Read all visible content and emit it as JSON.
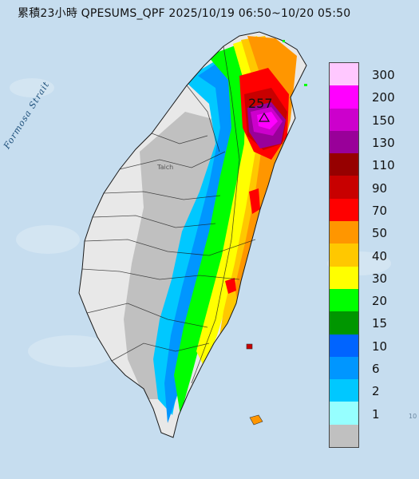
{
  "map": {
    "title": "累積23小時 QPESUMS_QPF 2025/10/19 06:50~10/20 05:50",
    "sea_label": "Formosa Strait",
    "peak_value": "257",
    "city_label": "Taich",
    "edge_mark": "10",
    "colors": {
      "sea": "#c6ddef",
      "land_no_rain": "#c0c0c0",
      "land_dry": "#e8e8e8",
      "borders": "#1a1a1a"
    },
    "legend": [
      {
        "label": "300",
        "color": "#ffc8ff"
      },
      {
        "label": "200",
        "color": "#ff00ff"
      },
      {
        "label": "150",
        "color": "#cc00cc"
      },
      {
        "label": "130",
        "color": "#990099"
      },
      {
        "label": "110",
        "color": "#960000"
      },
      {
        "label": "90",
        "color": "#c80000"
      },
      {
        "label": "70",
        "color": "#ff0000"
      },
      {
        "label": "50",
        "color": "#ff9600"
      },
      {
        "label": "40",
        "color": "#ffc800"
      },
      {
        "label": "30",
        "color": "#ffff00"
      },
      {
        "label": "20",
        "color": "#00ff00"
      },
      {
        "label": "15",
        "color": "#009600"
      },
      {
        "label": "10",
        "color": "#0064ff"
      },
      {
        "label": "6",
        "color": "#0096ff"
      },
      {
        "label": "2",
        "color": "#00c8ff"
      },
      {
        "label": "1",
        "color": "#96ffff"
      },
      {
        "label": "",
        "color": "#c0c0c0"
      }
    ]
  }
}
